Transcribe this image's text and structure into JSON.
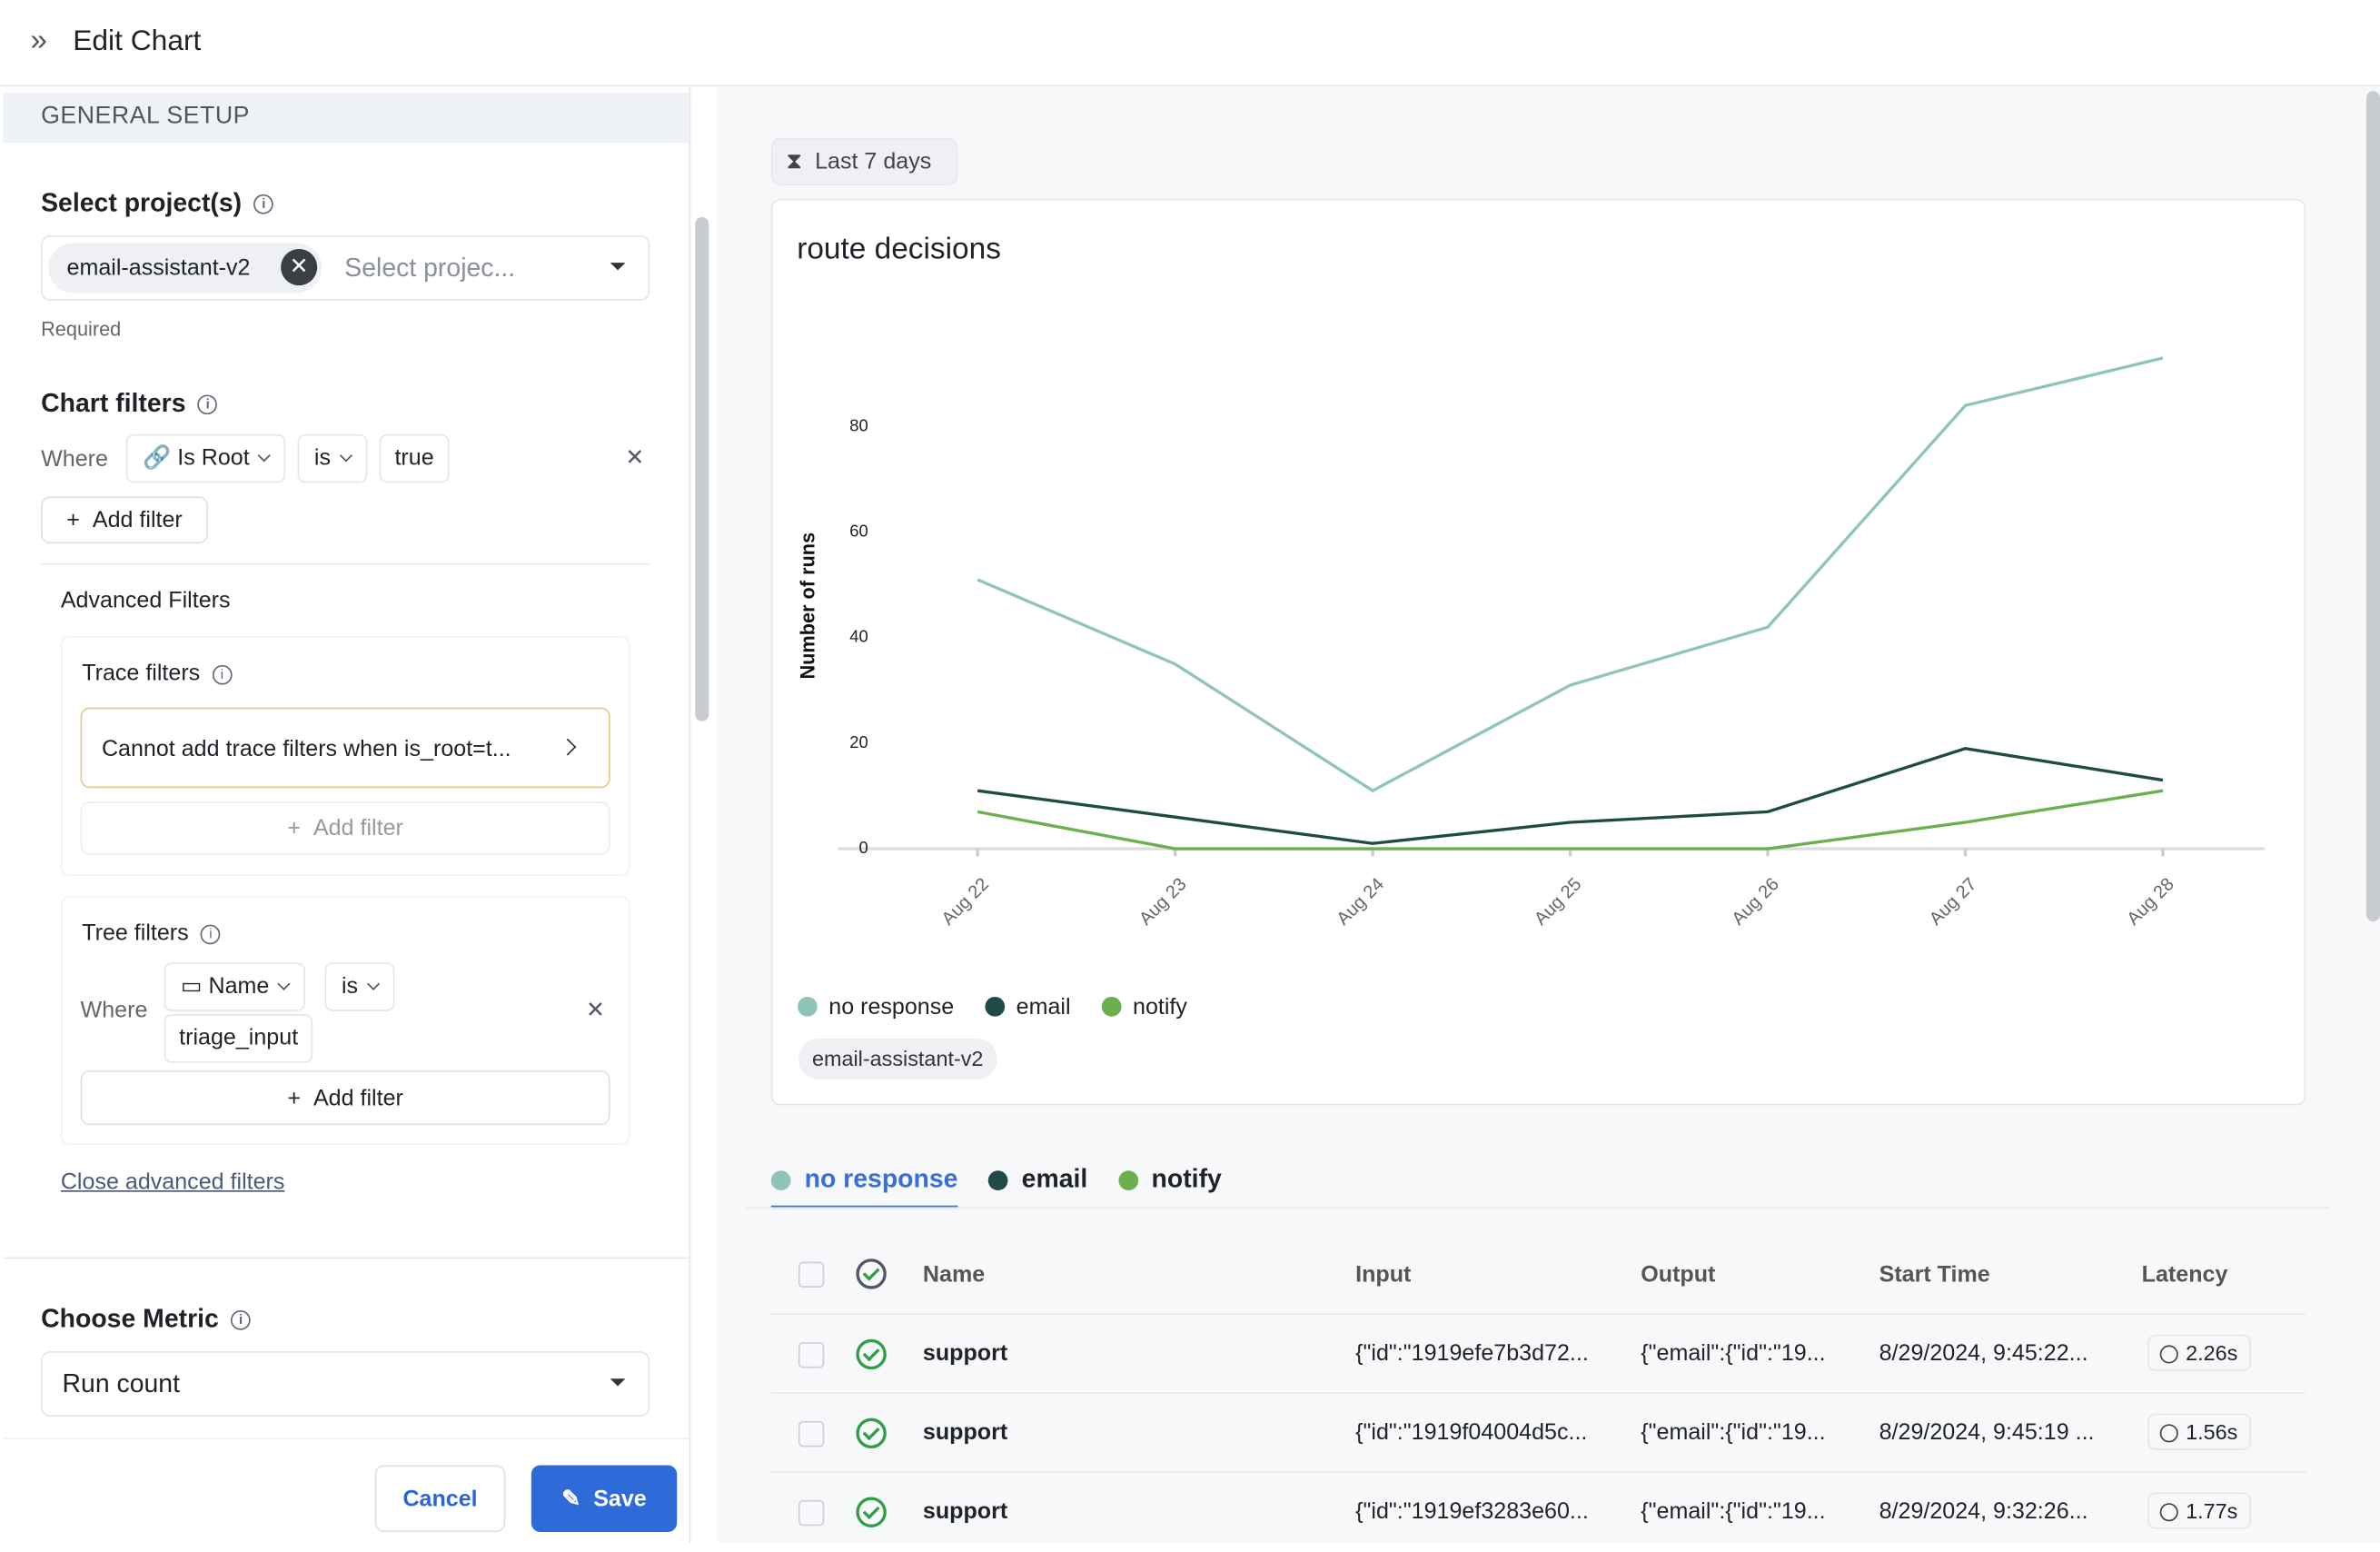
{
  "header": {
    "title": "Edit Chart"
  },
  "sidebar": {
    "section": "GENERAL SETUP",
    "project": {
      "label": "Select project(s)",
      "chip": "email-assistant-v2",
      "placeholder": "Select projec...",
      "hint": "Required"
    },
    "chart_filters": {
      "label": "Chart filters",
      "where": "Where",
      "field": "Is Root",
      "op": "is",
      "value": "true",
      "add": "Add filter"
    },
    "advanced": {
      "title": "Advanced Filters",
      "trace": {
        "label": "Trace filters",
        "warning": "Cannot add trace filters when is_root=t...",
        "add": "Add filter"
      },
      "tree": {
        "label": "Tree filters",
        "where": "Where",
        "field": "Name",
        "op": "is",
        "value": "triage_input",
        "add": "Add filter"
      },
      "close": "Close advanced filters"
    },
    "metric": {
      "label": "Choose Metric",
      "value": "Run count"
    },
    "buttons": {
      "cancel": "Cancel",
      "save": "Save"
    }
  },
  "time_range": "Last 7 days",
  "project_tag": "email-assistant-v2",
  "chart_data": {
    "type": "line",
    "title": "route decisions",
    "y_label": "Number of runs",
    "categories": [
      "Aug 22",
      "Aug 23",
      "Aug 24",
      "Aug 25",
      "Aug 26",
      "Aug 27",
      "Aug 28"
    ],
    "series": [
      {
        "name": "no response",
        "color": "#8ec5b8",
        "values": [
          51,
          35,
          11,
          31,
          42,
          84,
          93
        ]
      },
      {
        "name": "email",
        "color": "#1f4a45",
        "values": [
          11,
          6,
          1,
          5,
          7,
          19,
          13
        ]
      },
      {
        "name": "notify",
        "color": "#6ab04c",
        "values": [
          7,
          0,
          0,
          0,
          0,
          5,
          11
        ]
      }
    ],
    "ylim": [
      0,
      100
    ],
    "yticks": [
      0,
      20,
      40,
      60,
      80
    ]
  },
  "table": {
    "columns": [
      "Name",
      "Input",
      "Output",
      "Start Time",
      "Latency"
    ],
    "rows": [
      [
        "support",
        "{\"id\":\"1919efe7b3d72...",
        "{\"email\":{\"id\":\"19...",
        "8/29/2024, 9:45:22...",
        "2.26s"
      ],
      [
        "support",
        "{\"id\":\"1919f04004d5c...",
        "{\"email\":{\"id\":\"19...",
        "8/29/2024, 9:45:19 ...",
        "1.56s"
      ],
      [
        "support",
        "{\"id\":\"1919ef3283e60...",
        "{\"email\":{\"id\":\"19...",
        "8/29/2024, 9:32:26...",
        "1.77s"
      ]
    ]
  }
}
